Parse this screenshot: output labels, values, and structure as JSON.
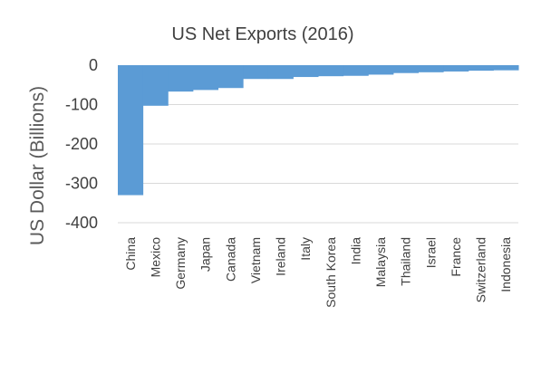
{
  "chart_data": {
    "type": "bar",
    "title": "US Net Exports (2016)",
    "xlabel": "",
    "ylabel": "US Dollar (Billions)",
    "ylim": [
      -400,
      0
    ],
    "yticks": [
      0,
      -100,
      -200,
      -300,
      -400
    ],
    "grid": true,
    "legend": "none",
    "categories": [
      "China",
      "Mexico",
      "Germany",
      "Japan",
      "Canada",
      "Vietnam",
      "Ireland",
      "Italy",
      "South Korea",
      "India",
      "Malaysia",
      "Thailand",
      "Israel",
      "France",
      "Switzerland",
      "Indonesia"
    ],
    "values": [
      -330,
      -103,
      -67,
      -63,
      -58,
      -35,
      -35,
      -30,
      -28,
      -27,
      -24,
      -20,
      -18,
      -16,
      -14,
      -13
    ],
    "bar_color": "#5b9bd5"
  }
}
